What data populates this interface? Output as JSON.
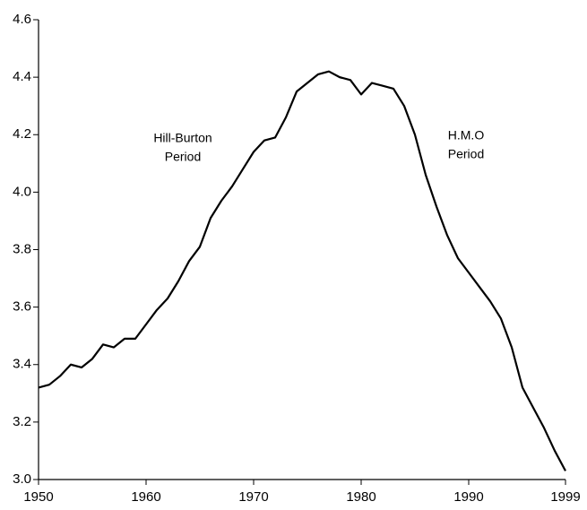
{
  "chart_data": {
    "type": "line",
    "annotations": [
      [
        "Hill-Burton",
        "Period"
      ],
      [
        "H.M.O",
        "Period"
      ]
    ],
    "x": [
      1950,
      1951,
      1952,
      1953,
      1954,
      1955,
      1956,
      1957,
      1958,
      1959,
      1960,
      1961,
      1962,
      1963,
      1964,
      1965,
      1966,
      1967,
      1968,
      1969,
      1970,
      1971,
      1972,
      1973,
      1974,
      1975,
      1976,
      1977,
      1978,
      1979,
      1980,
      1981,
      1982,
      1983,
      1984,
      1985,
      1986,
      1987,
      1988,
      1989,
      1990,
      1991,
      1992,
      1993,
      1994,
      1995,
      1996,
      1997,
      1998,
      1999
    ],
    "series": [
      {
        "color": "#000000",
        "values": [
          3.32,
          3.33,
          3.36,
          3.4,
          3.39,
          3.42,
          3.47,
          3.46,
          3.49,
          3.49,
          3.54,
          3.59,
          3.63,
          3.69,
          3.76,
          3.81,
          3.91,
          3.97,
          4.02,
          4.08,
          4.14,
          4.18,
          4.19,
          4.26,
          4.35,
          4.38,
          4.41,
          4.42,
          4.4,
          4.39,
          4.34,
          4.38,
          4.37,
          4.36,
          4.3,
          4.2,
          4.06,
          3.95,
          3.85,
          3.77,
          3.72,
          3.67,
          3.62,
          3.56,
          3.46,
          3.32,
          3.25,
          3.18,
          3.1,
          3.03
        ]
      }
    ],
    "xlim": [
      1950,
      1999
    ],
    "xticks": [
      1950,
      1960,
      1970,
      1980,
      1990,
      1999
    ],
    "ylim": [
      3.0,
      4.6
    ],
    "yticks": [
      {
        "value": 3,
        "label": "3.0"
      },
      3.2,
      3.4,
      3.6,
      3.8,
      {
        "value": 4,
        "label": "4.0"
      },
      4.2,
      4.4,
      4.6
    ]
  }
}
